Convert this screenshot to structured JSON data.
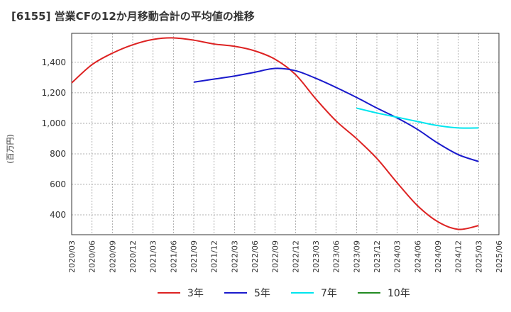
{
  "title": "[6155]  営業CFの12か月移動合計の平均値の推移",
  "chart_data": {
    "type": "line",
    "title": "[6155]  営業CFの12か月移動合計の平均値の推移",
    "ylabel": "(百万円)",
    "xlabel": "",
    "ylim": [
      270,
      1590
    ],
    "yticks": [
      400,
      600,
      800,
      1000,
      1200,
      1400
    ],
    "ytick_labels": [
      "400",
      "600",
      "800",
      "1,000",
      "1,200",
      "1,400"
    ],
    "grid": true,
    "legend_position": "bottom",
    "x": [
      "2020/03",
      "2020/06",
      "2020/09",
      "2020/12",
      "2021/03",
      "2021/06",
      "2021/09",
      "2021/12",
      "2022/03",
      "2022/06",
      "2022/09",
      "2022/12",
      "2023/03",
      "2023/06",
      "2023/09",
      "2023/12",
      "2024/03",
      "2024/06",
      "2024/09",
      "2024/12",
      "2025/03",
      "2025/06"
    ],
    "series": [
      {
        "name": "3年",
        "color": "#dd2222",
        "values": [
          1265,
          1385,
          1460,
          1515,
          1550,
          1560,
          1545,
          1520,
          1505,
          1475,
          1420,
          1320,
          1160,
          1015,
          900,
          770,
          610,
          460,
          355,
          305,
          330,
          null
        ]
      },
      {
        "name": "5年",
        "color": "#1a1acc",
        "values": [
          null,
          null,
          null,
          null,
          null,
          null,
          1270,
          1290,
          1310,
          1335,
          1360,
          1345,
          1295,
          1235,
          1170,
          1100,
          1035,
          960,
          870,
          795,
          750,
          null
        ]
      },
      {
        "name": "7年",
        "color": "#00e5ee",
        "values": [
          null,
          null,
          null,
          null,
          null,
          null,
          null,
          null,
          null,
          null,
          null,
          null,
          null,
          null,
          1100,
          1068,
          1040,
          1012,
          985,
          970,
          970,
          null
        ]
      },
      {
        "name": "10年",
        "color": "#228b22",
        "values": [
          null,
          null,
          null,
          null,
          null,
          null,
          null,
          null,
          null,
          null,
          null,
          null,
          null,
          null,
          null,
          null,
          null,
          null,
          null,
          null,
          null,
          null
        ]
      }
    ]
  }
}
